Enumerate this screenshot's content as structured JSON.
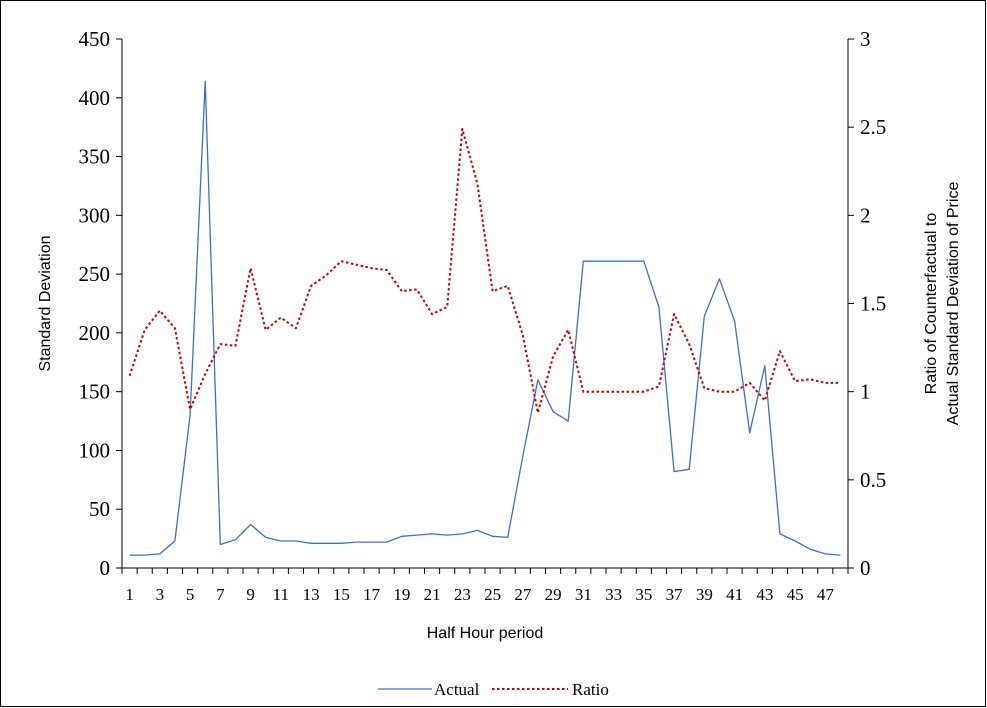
{
  "chart_data": {
    "type": "line",
    "xlabel": "Half Hour period",
    "ylabel": "Standard Deviation",
    "y2label_lines": [
      "Ratio of Counterfactual to",
      "Actual Standard Deviation of Price"
    ],
    "x": [
      1,
      2,
      3,
      4,
      5,
      6,
      7,
      8,
      9,
      10,
      11,
      12,
      13,
      14,
      15,
      16,
      17,
      18,
      19,
      20,
      21,
      22,
      23,
      24,
      25,
      26,
      27,
      28,
      29,
      30,
      31,
      32,
      33,
      34,
      35,
      36,
      37,
      38,
      39,
      40,
      41,
      42,
      43,
      44,
      45,
      46,
      47,
      48
    ],
    "x_tick_labels": [
      "1",
      "3",
      "5",
      "7",
      "9",
      "11",
      "13",
      "15",
      "17",
      "19",
      "21",
      "23",
      "25",
      "27",
      "29",
      "31",
      "33",
      "35",
      "37",
      "39",
      "41",
      "43",
      "45",
      "47"
    ],
    "ylim": [
      0,
      450
    ],
    "y_ticks": [
      0,
      50,
      100,
      150,
      200,
      250,
      300,
      350,
      400,
      450
    ],
    "y2lim": [
      0,
      3
    ],
    "y2_ticks": [
      "0",
      "0.5",
      "1",
      "1.5",
      "2",
      "2.5",
      "3"
    ],
    "legend_position": "bottom",
    "grid": false,
    "series": [
      {
        "name": "Actual",
        "axis": "left",
        "color": "#3b6fd4",
        "style": "solid",
        "values": [
          11,
          11,
          12,
          23,
          130,
          414,
          20,
          24,
          37,
          26,
          23,
          23,
          21,
          21,
          21,
          22,
          22,
          22,
          27,
          28,
          29,
          28,
          29,
          32,
          27,
          26,
          95,
          160,
          133,
          125,
          261,
          261,
          261,
          261,
          261,
          222,
          82,
          84,
          214,
          246,
          210,
          115,
          172,
          29,
          23,
          16,
          12,
          11
        ]
      },
      {
        "name": "Ratio",
        "axis": "right",
        "color": "#cc0000",
        "style": "dotted",
        "values": [
          1.09,
          1.35,
          1.46,
          1.36,
          0.9,
          1.1,
          1.27,
          1.26,
          1.7,
          1.35,
          1.42,
          1.36,
          1.6,
          1.66,
          1.74,
          1.72,
          1.7,
          1.69,
          1.57,
          1.58,
          1.44,
          1.48,
          2.49,
          2.18,
          1.57,
          1.6,
          1.32,
          0.88,
          1.2,
          1.35,
          1.0,
          1.0,
          1.0,
          1.0,
          1.0,
          1.03,
          1.44,
          1.27,
          1.02,
          1.0,
          1.0,
          1.05,
          0.95,
          1.23,
          1.06,
          1.07,
          1.05,
          1.05
        ]
      }
    ]
  }
}
